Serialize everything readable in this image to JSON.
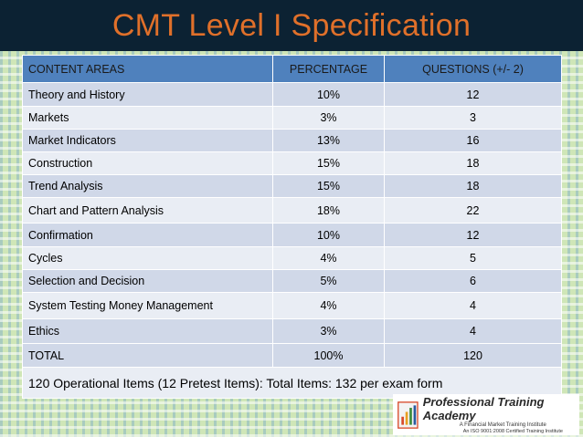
{
  "title": "CMT Level I Specification",
  "table": {
    "headers": [
      "CONTENT AREAS",
      "PERCENTAGE",
      "QUESTIONS (+/- 2)"
    ],
    "rows": [
      [
        "Theory and History",
        "10%",
        "12"
      ],
      [
        "Markets",
        "3%",
        "3"
      ],
      [
        "Market Indicators",
        "13%",
        "16"
      ],
      [
        "Construction",
        "15%",
        "18"
      ],
      [
        "Trend Analysis",
        "15%",
        "18"
      ],
      [
        "Chart and Pattern Analysis",
        "18%",
        "22"
      ],
      [
        "Confirmation",
        "10%",
        "12"
      ],
      [
        "Cycles",
        "4%",
        "5"
      ],
      [
        "Selection and Decision",
        "5%",
        "6"
      ],
      [
        "System Testing Money Management",
        "4%",
        "4"
      ],
      [
        "Ethics",
        "3%",
        "4"
      ],
      [
        "TOTAL",
        "100%",
        "120"
      ]
    ],
    "footer": "120 Operational Items (12 Pretest Items): Total Items: 132 per exam form"
  },
  "logo": {
    "name": "Professional Training Academy",
    "tagline": "A Financial Market Training Institute",
    "certification": "An ISO 9001:2008 Certified Training Institute"
  },
  "colors": {
    "title_bar": "#0c2233",
    "title_text": "#e0702a",
    "header_fill": "#4f81bd",
    "row_dark": "#d0d8e8",
    "row_light": "#e9edf4"
  }
}
